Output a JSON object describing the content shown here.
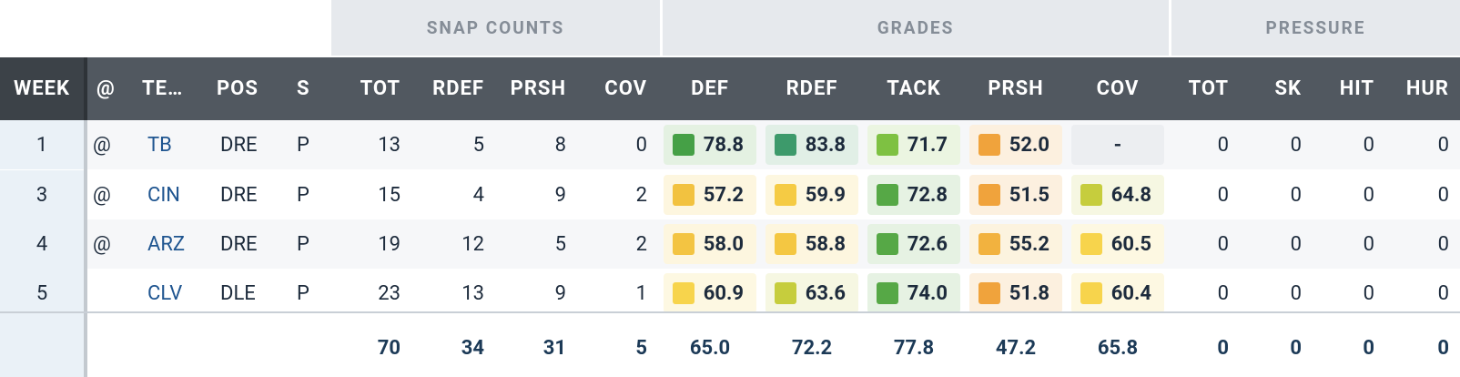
{
  "groups": {
    "snap_counts": "SNAP COUNTS",
    "grades": "GRADES",
    "pressure": "PRESSURE"
  },
  "columns": {
    "week": "WEEK",
    "at": "@",
    "team": "TE…",
    "pos": "POS",
    "s": "S",
    "tot": "TOT",
    "rdef": "RDEF",
    "prsh": "PRSH",
    "cov": "COV",
    "g_def": "DEF",
    "g_rdef": "RDEF",
    "g_tack": "TACK",
    "g_prsh": "PRSH",
    "g_cov": "COV",
    "p_tot": "TOT",
    "p_sk": "SK",
    "p_hit": "HIT",
    "p_hur": "HUR"
  },
  "grade_colors": {
    "dark_green": "#45a046",
    "teal_green": "#3d9a6b",
    "light_green": "#7ec142",
    "yellow_green": "#c6cd3d",
    "yellow": "#f2cc41",
    "light_yellow": "#f7d44c",
    "orange": "#f0a33c"
  },
  "rows": [
    {
      "week": "1",
      "at": "@",
      "team": "TB",
      "pos": "DRE",
      "s": "P",
      "tot": "13",
      "rdef": "5",
      "prsh": "8",
      "cov": "0",
      "grades": {
        "def": {
          "value": "78.8",
          "color": "#45a046",
          "bg": "#e4f1e2"
        },
        "rdef": {
          "value": "83.8",
          "color": "#3d9a6b",
          "bg": "#e1efe6"
        },
        "tack": {
          "value": "71.7",
          "color": "#7ec142",
          "bg": "#ebf5e1"
        },
        "prsh": {
          "value": "52.0",
          "color": "#f0a33c",
          "bg": "#fcf0df"
        },
        "cov": {
          "value": "-",
          "color": "",
          "bg": "#eceef1"
        }
      },
      "p_tot": "0",
      "p_sk": "0",
      "p_hit": "0",
      "p_hur": "0"
    },
    {
      "week": "3",
      "at": "@",
      "team": "CIN",
      "pos": "DRE",
      "s": "P",
      "tot": "15",
      "rdef": "4",
      "prsh": "9",
      "cov": "2",
      "grades": {
        "def": {
          "value": "57.2",
          "color": "#f2c240",
          "bg": "#fdf6df"
        },
        "rdef": {
          "value": "59.9",
          "color": "#f5cb44",
          "bg": "#fdf7e0"
        },
        "tack": {
          "value": "72.8",
          "color": "#56a846",
          "bg": "#e6f2e3"
        },
        "prsh": {
          "value": "51.5",
          "color": "#f0a33c",
          "bg": "#fcf0df"
        },
        "cov": {
          "value": "64.8",
          "color": "#c6cd3d",
          "bg": "#f6f7e2"
        }
      },
      "p_tot": "0",
      "p_sk": "0",
      "p_hit": "0",
      "p_hur": "0"
    },
    {
      "week": "4",
      "at": "@",
      "team": "ARZ",
      "pos": "DRE",
      "s": "P",
      "tot": "19",
      "rdef": "12",
      "prsh": "5",
      "cov": "2",
      "grades": {
        "def": {
          "value": "58.0",
          "color": "#f3c442",
          "bg": "#fdf6df"
        },
        "rdef": {
          "value": "58.8",
          "color": "#f4c742",
          "bg": "#fdf6df"
        },
        "tack": {
          "value": "72.6",
          "color": "#56a846",
          "bg": "#e6f2e3"
        },
        "prsh": {
          "value": "55.2",
          "color": "#f2b23f",
          "bg": "#fcf3df"
        },
        "cov": {
          "value": "60.5",
          "color": "#f7d44c",
          "bg": "#fdf8e2"
        }
      },
      "p_tot": "0",
      "p_sk": "0",
      "p_hit": "0",
      "p_hur": "0"
    },
    {
      "week": "5",
      "at": "",
      "team": "CLV",
      "pos": "DLE",
      "s": "P",
      "tot": "23",
      "rdef": "13",
      "prsh": "9",
      "cov": "1",
      "grades": {
        "def": {
          "value": "60.9",
          "color": "#f7d44c",
          "bg": "#fdf8e2"
        },
        "rdef": {
          "value": "63.6",
          "color": "#c6cd3d",
          "bg": "#f6f7e2"
        },
        "tack": {
          "value": "74.0",
          "color": "#56a846",
          "bg": "#e6f2e3"
        },
        "prsh": {
          "value": "51.8",
          "color": "#f0a33c",
          "bg": "#fcf0df"
        },
        "cov": {
          "value": "60.4",
          "color": "#f7d44c",
          "bg": "#fdf8e2"
        }
      },
      "p_tot": "0",
      "p_sk": "0",
      "p_hit": "0",
      "p_hur": "0"
    }
  ],
  "totals": {
    "tot": "70",
    "rdef": "34",
    "prsh": "31",
    "cov": "5",
    "g_def": "65.0",
    "g_rdef": "72.2",
    "g_tack": "77.8",
    "g_prsh": "47.2",
    "g_cov": "65.8",
    "p_tot": "0",
    "p_sk": "0",
    "p_hit": "0",
    "p_hur": "0"
  }
}
